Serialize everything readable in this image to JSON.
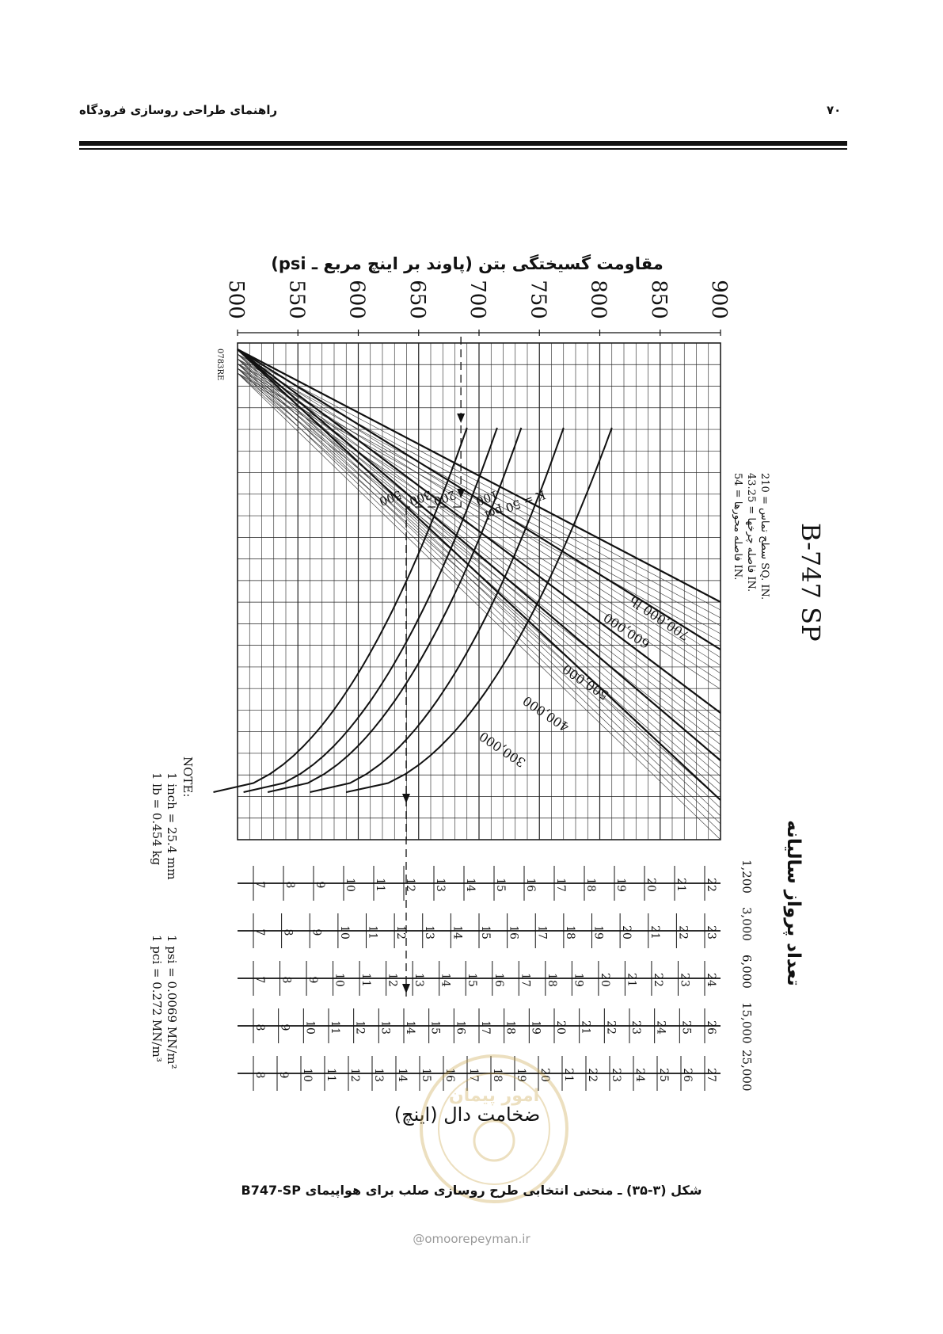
{
  "header": {
    "page_number": "۷۰",
    "book_title": "راهنمای طراحی روسازی فرودگاه"
  },
  "chart_data": {
    "type": "line",
    "title": "مقاومت گسیختگی بتن (پاوند بر اینچ مربع ـ psi)",
    "code": "0783RE",
    "aircraft": "B-747 SP",
    "specs": [
      "سطح تماس = 210 SQ. IN.",
      "فاصله چرخها = 43.25 IN.",
      "فاصله محورها = 54 IN."
    ],
    "flexural_axis": {
      "unit": "psi",
      "range": [
        500,
        900
      ],
      "ticks": [
        "500",
        "550",
        "600",
        "650",
        "700",
        "750",
        "800",
        "850",
        "900"
      ]
    },
    "k_curves": [
      {
        "label": "K = 50 pci",
        "value": 50,
        "a": 590,
        "b": 810
      },
      {
        "label": "100",
        "value": 100,
        "a": 560,
        "b": 770
      },
      {
        "label": "200",
        "value": 200,
        "a": 525,
        "b": 735
      },
      {
        "label": "300",
        "value": 300,
        "a": 505,
        "b": 715
      },
      {
        "label": "500",
        "value": 500,
        "a": 480,
        "b": 690
      }
    ],
    "load_lines": [
      {
        "label": "700,000 lb",
        "value": 700000
      },
      {
        "label": "600,000",
        "value": 600000
      },
      {
        "label": "500,000",
        "value": 500000
      },
      {
        "label": "400,000",
        "value": 400000
      },
      {
        "label": "300,000",
        "value": 300000
      }
    ],
    "departures_title": "تعداد پرواز سالیانه",
    "departure_scales": [
      {
        "label": "1,200",
        "min": 7,
        "max": 22
      },
      {
        "label": "3,000",
        "min": 7,
        "max": 23
      },
      {
        "label": "6,000",
        "min": 7,
        "max": 24
      },
      {
        "label": "15,000",
        "min": 8,
        "max": 26
      },
      {
        "label": "25,000",
        "min": 8,
        "max": 27
      }
    ],
    "thickness_label": "ضخامت دال (اینچ)",
    "example": {
      "flexural_strength": 685,
      "k_value": 200,
      "gross_weight": 700000,
      "thickness": 13
    },
    "note": {
      "title": "NOTE:",
      "lines": [
        "1 inch = 25.4 mm",
        "1 lb = 0.454 kg",
        "1 psi = 0.0069 MN/m²",
        "1 pci = 0.272 MN/m³"
      ]
    }
  },
  "caption": "شکل (۳-۳۵) ـ منحنی انتخابی طرح روسازی صلب برای هواپیمای B747-SP",
  "watermark": "@omoorepeyman.ir",
  "stamp_text": "امور پیمان"
}
